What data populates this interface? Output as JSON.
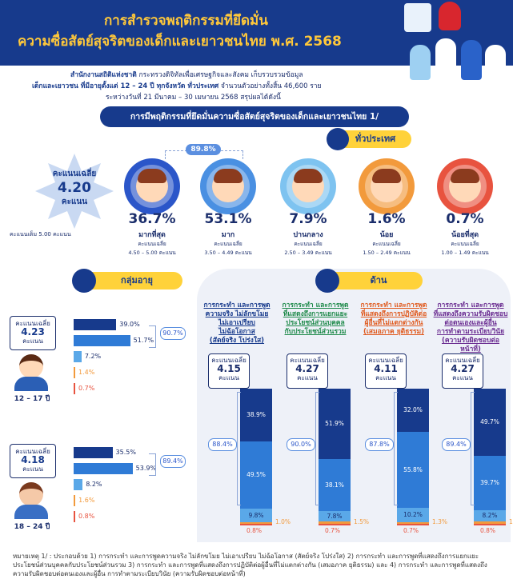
{
  "header": {
    "title_line1": "การสำรวจพฤติกรรมที่ยึดมั่น",
    "title_line2": "ความซื่อสัตย์สุจริตของเด็กและเยาวชนไทย พ.ศ. 2568",
    "sub_line1_org": "สำนักงานสถิติแห่งชาติ",
    "sub_line1_rest": "กระทรวงดิจิทัลเพื่อเศรษฐกิจและสังคม เก็บรวบรวมข้อมูล",
    "sub_line2_bold": "เด็กและเยาวชน ที่มีอายุตั้งแต่ 12 – 24 ปี ทุกจังหวัด ทั่วประเทศ",
    "sub_line2_rest": "จำนวนตัวอย่างทั้งสิ้น 46,600 ราย",
    "sub_line3": "ระหว่างวันที่ 21 มีนาคม – 30 เมษายน 2568 สรุปผลได้ดังนี้"
  },
  "banner": "การมีพฤติกรรมที่ยึดมั่นความซื่อสัตย์สุจริตของเด็กและเยาวชนไทย 1/",
  "national": {
    "pill": "ทั่วประเทศ",
    "avg_label": "คะแนนเฉลี่ย",
    "avg_value": "4.20",
    "avg_unit": "คะแนน",
    "full_score": "คะแนนเต็ม 5.00 คะแนน",
    "combined": "89.8%",
    "levels": [
      {
        "pct": "36.7%",
        "name": "มากที่สุด",
        "score_label": "คะแนนเฉลี่ย",
        "range": "4.50 – 5.00 คะแนน",
        "color": "#2b56c9"
      },
      {
        "pct": "53.1%",
        "name": "มาก",
        "score_label": "คะแนนเฉลี่ย",
        "range": "3.50 – 4.49 คะแนน",
        "color": "#4a90e2"
      },
      {
        "pct": "7.9%",
        "name": "ปานกลาง",
        "score_label": "คะแนนเฉลี่ย",
        "range": "2.50 – 3.49 คะแนน",
        "color": "#7ec3f0"
      },
      {
        "pct": "1.6%",
        "name": "น้อย",
        "score_label": "คะแนนเฉลี่ย",
        "range": "1.50 – 2.49 คะแนน",
        "color": "#f29a3c"
      },
      {
        "pct": "0.7%",
        "name": "น้อยที่สุด",
        "score_label": "คะแนนเฉลี่ย",
        "range": "1.00 – 1.49 คะแนน",
        "color": "#e8533f"
      }
    ]
  },
  "age": {
    "pill": "กลุ่มอายุ",
    "groups": [
      {
        "label": "12 – 17 ปี",
        "avg_label": "คะแนนเฉลี่ย",
        "avg": "4.23",
        "unit": "คะแนน",
        "combined": "90.7%"
      },
      {
        "label": "18 – 24 ปี",
        "avg_label": "คะแนนเฉลี่ย",
        "avg": "4.18",
        "unit": "คะแนน",
        "combined": "89.4%"
      }
    ]
  },
  "dims": {
    "pill": "ด้าน",
    "items": [
      {
        "head": [
          "การกระทำ และการพูด",
          "ความจริง ไม่ลักขโมย",
          "ไม่เอาเปรียบ",
          "ไม่ฉ้อโอกาส",
          "(สัตย์จริง โปร่งใส)"
        ],
        "color": "#173a8c",
        "avg_label": "คะแนนเฉลี่ย",
        "avg": "4.15",
        "unit": "คะแนน",
        "combined": "88.4%"
      },
      {
        "head": [
          "การกระทำ และการพูด",
          "ที่แสดงถึงการแยกแยะ",
          "ประโยชน์ส่วนบุคคล",
          "กับประโยชน์ส่วนรวม"
        ],
        "color": "#1e8a4a",
        "avg_label": "คะแนนเฉลี่ย",
        "avg": "4.27",
        "unit": "คะแนน",
        "combined": "90.0%"
      },
      {
        "head": [
          "การกระทำ และการพูด",
          "ที่แสดงถึงการปฏิบัติต่อ",
          "ผู้อื่นที่ไม่แตกต่างกัน",
          "(เสมอภาค ยุติธรรม)"
        ],
        "color": "#e05a1e",
        "avg_label": "คะแนนเฉลี่ย",
        "avg": "4.11",
        "unit": "คะแนน",
        "combined": "87.8%"
      },
      {
        "head": [
          "การกระทำ และการพูด",
          "ที่แสดงถึงความรับผิดชอบ",
          "ต่อตนเองและผู้อื่น",
          "การทำตามระเบียบวินัย",
          "(ความรับผิดชอบต่อหน้าที่)"
        ],
        "color": "#6a2c91",
        "avg_label": "คะแนนเฉลี่ย",
        "avg": "4.27",
        "unit": "คะแนน",
        "combined": "89.4%"
      }
    ]
  },
  "chart_data": [
    {
      "type": "bar",
      "orientation": "horizontal",
      "categories": [
        "มากที่สุด",
        "มาก",
        "ปานกลาง",
        "น้อย",
        "น้อยที่สุด"
      ],
      "series": [
        {
          "name": "12 – 17 ปี",
          "values": [
            39.0,
            51.7,
            7.2,
            1.4,
            0.7
          ]
        },
        {
          "name": "18 – 24 ปี",
          "values": [
            35.5,
            53.9,
            8.2,
            1.6,
            0.8
          ]
        }
      ],
      "colors": [
        "#173a8c",
        "#2f7bd6",
        "#5aa8e8",
        "#f29a3c",
        "#e8533f"
      ]
    },
    {
      "type": "bar",
      "stacked": true,
      "categories": [
        "สัตย์จริง โปร่งใส",
        "ประโยชน์ส่วนรวม",
        "เสมอภาค ยุติธรรม",
        "ความรับผิดชอบต่อหน้าที่"
      ],
      "series": [
        {
          "name": "มากที่สุด",
          "values": [
            38.9,
            51.9,
            32.0,
            49.7
          ]
        },
        {
          "name": "มาก",
          "values": [
            49.5,
            38.1,
            55.8,
            39.7
          ]
        },
        {
          "name": "ปานกลาง",
          "values": [
            9.8,
            7.8,
            10.2,
            8.2
          ]
        },
        {
          "name": "น้อย",
          "values": [
            1.0,
            1.5,
            1.3,
            1.6
          ]
        },
        {
          "name": "น้อยที่สุด",
          "values": [
            0.8,
            0.7,
            0.7,
            0.8
          ]
        }
      ],
      "colors": [
        "#173a8c",
        "#2f7bd6",
        "#5aa8e8",
        "#f29a3c",
        "#e8533f"
      ]
    }
  ],
  "footnote": [
    "หมายเหตุ 1/ : ประกอบด้วย 1) การกระทำ และการพูดความจริง ไม่ลักขโมย ไม่เอาเปรียบ ไม่ฉ้อโอกาส (สัตย์จริง โปร่งใส) 2) การกระทำ และการพูดที่แสดงถึงการแยกแยะ",
    "ประโยชน์ส่วนบุคคลกับประโยชน์ส่วนรวม 3) การกระทำ และการพูดที่แสดงถึงการปฏิบัติต่อผู้อื่นที่ไม่แตกต่างกัน (เสมอภาค ยุติธรรม) และ 4) การกระทำ และการพูดที่แสดงถึง",
    "ความรับผิดชอบต่อตนเองและผู้อื่น การทำตามระเบียบวินัย (ความรับผิดชอบต่อหน้าที่)"
  ]
}
